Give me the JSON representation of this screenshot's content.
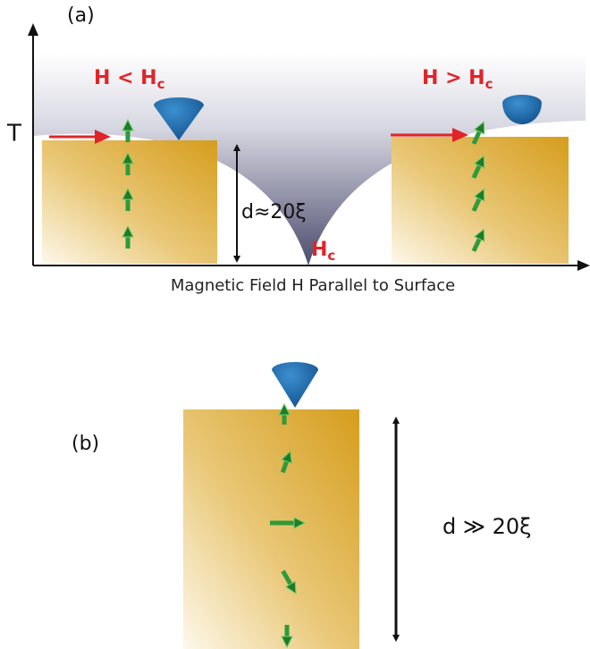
{
  "panel_a": {
    "label": "(a)",
    "y_axis_label": "T",
    "x_axis_label": "Magnetic Field H Parallel to Surface",
    "low_field": {
      "main": "H < H",
      "sub": "c"
    },
    "high_field": {
      "main": "H > H",
      "sub": "c"
    },
    "critical": {
      "main": "H",
      "sub": "c"
    },
    "thickness": "d≈20ξ"
  },
  "panel_b": {
    "label": "(b)",
    "thickness": "d ≫ 20ξ"
  }
}
